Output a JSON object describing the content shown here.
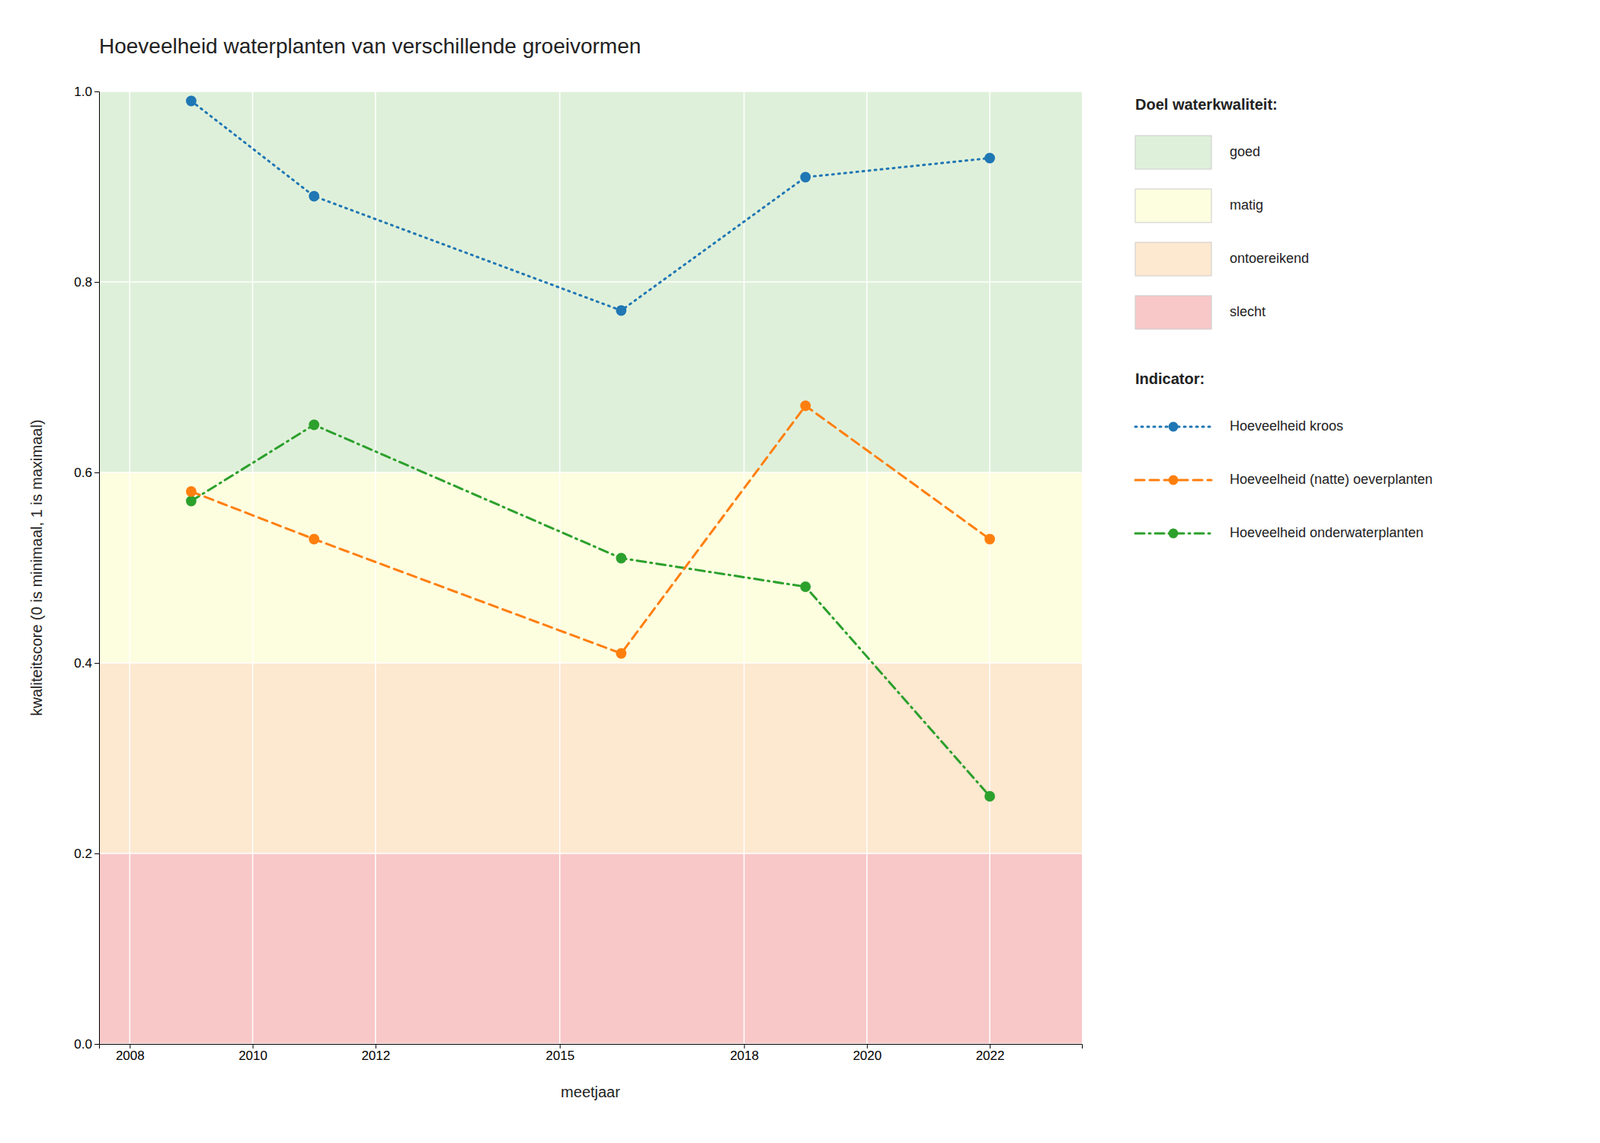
{
  "chart_data": {
    "type": "line",
    "title": "Hoeveelheid waterplanten van verschillende groeivormen",
    "x_label": "meetjaar",
    "y_label": "kwaliteitscore (0 is minimaal, 1 is maximaal)",
    "x": [
      2009,
      2011,
      2016,
      2019,
      2022
    ],
    "series": [
      {
        "name": "Hoeveelheid kroos",
        "values": [
          0.99,
          0.89,
          0.77,
          0.91,
          0.93
        ],
        "line_style": "dotted",
        "marker": "circle"
      },
      {
        "name": "Hoeveelheid (natte) oeverplanten",
        "values": [
          0.58,
          0.53,
          0.41,
          0.67,
          0.53
        ],
        "line_style": "dashed",
        "marker": "circle"
      },
      {
        "name": "Hoeveelheid onderwaterplanten",
        "values": [
          0.57,
          0.65,
          0.51,
          0.48,
          0.26
        ],
        "line_style": "dashdot",
        "marker": "circle"
      }
    ],
    "xlim": [
      2007.5,
      2023.5
    ],
    "ylim": [
      0.0,
      1.0
    ],
    "xticks": [
      2008,
      2010,
      2012,
      2015,
      2018,
      2020,
      2022
    ],
    "yticks": [
      {
        "value": 0.0,
        "label": "0.0"
      },
      0.2,
      0.4,
      0.6,
      0.8,
      {
        "value": 1.0,
        "label": "1.0"
      }
    ],
    "grid": true,
    "zones_title": "Doel waterkwaliteit:",
    "series_title": "Indicator:",
    "zones": [
      {
        "label": "goed",
        "from": 0.6,
        "to": 1.0,
        "color": "#dff0da"
      },
      {
        "label": "matig",
        "from": 0.4,
        "to": 0.6,
        "color": "#fdfde0"
      },
      {
        "label": "ontoereikend",
        "from": 0.2,
        "to": 0.4,
        "color": "#fde8d0"
      },
      {
        "label": "slecht",
        "from": 0.0,
        "to": 0.2,
        "color": "#f8c8c8"
      }
    ]
  }
}
